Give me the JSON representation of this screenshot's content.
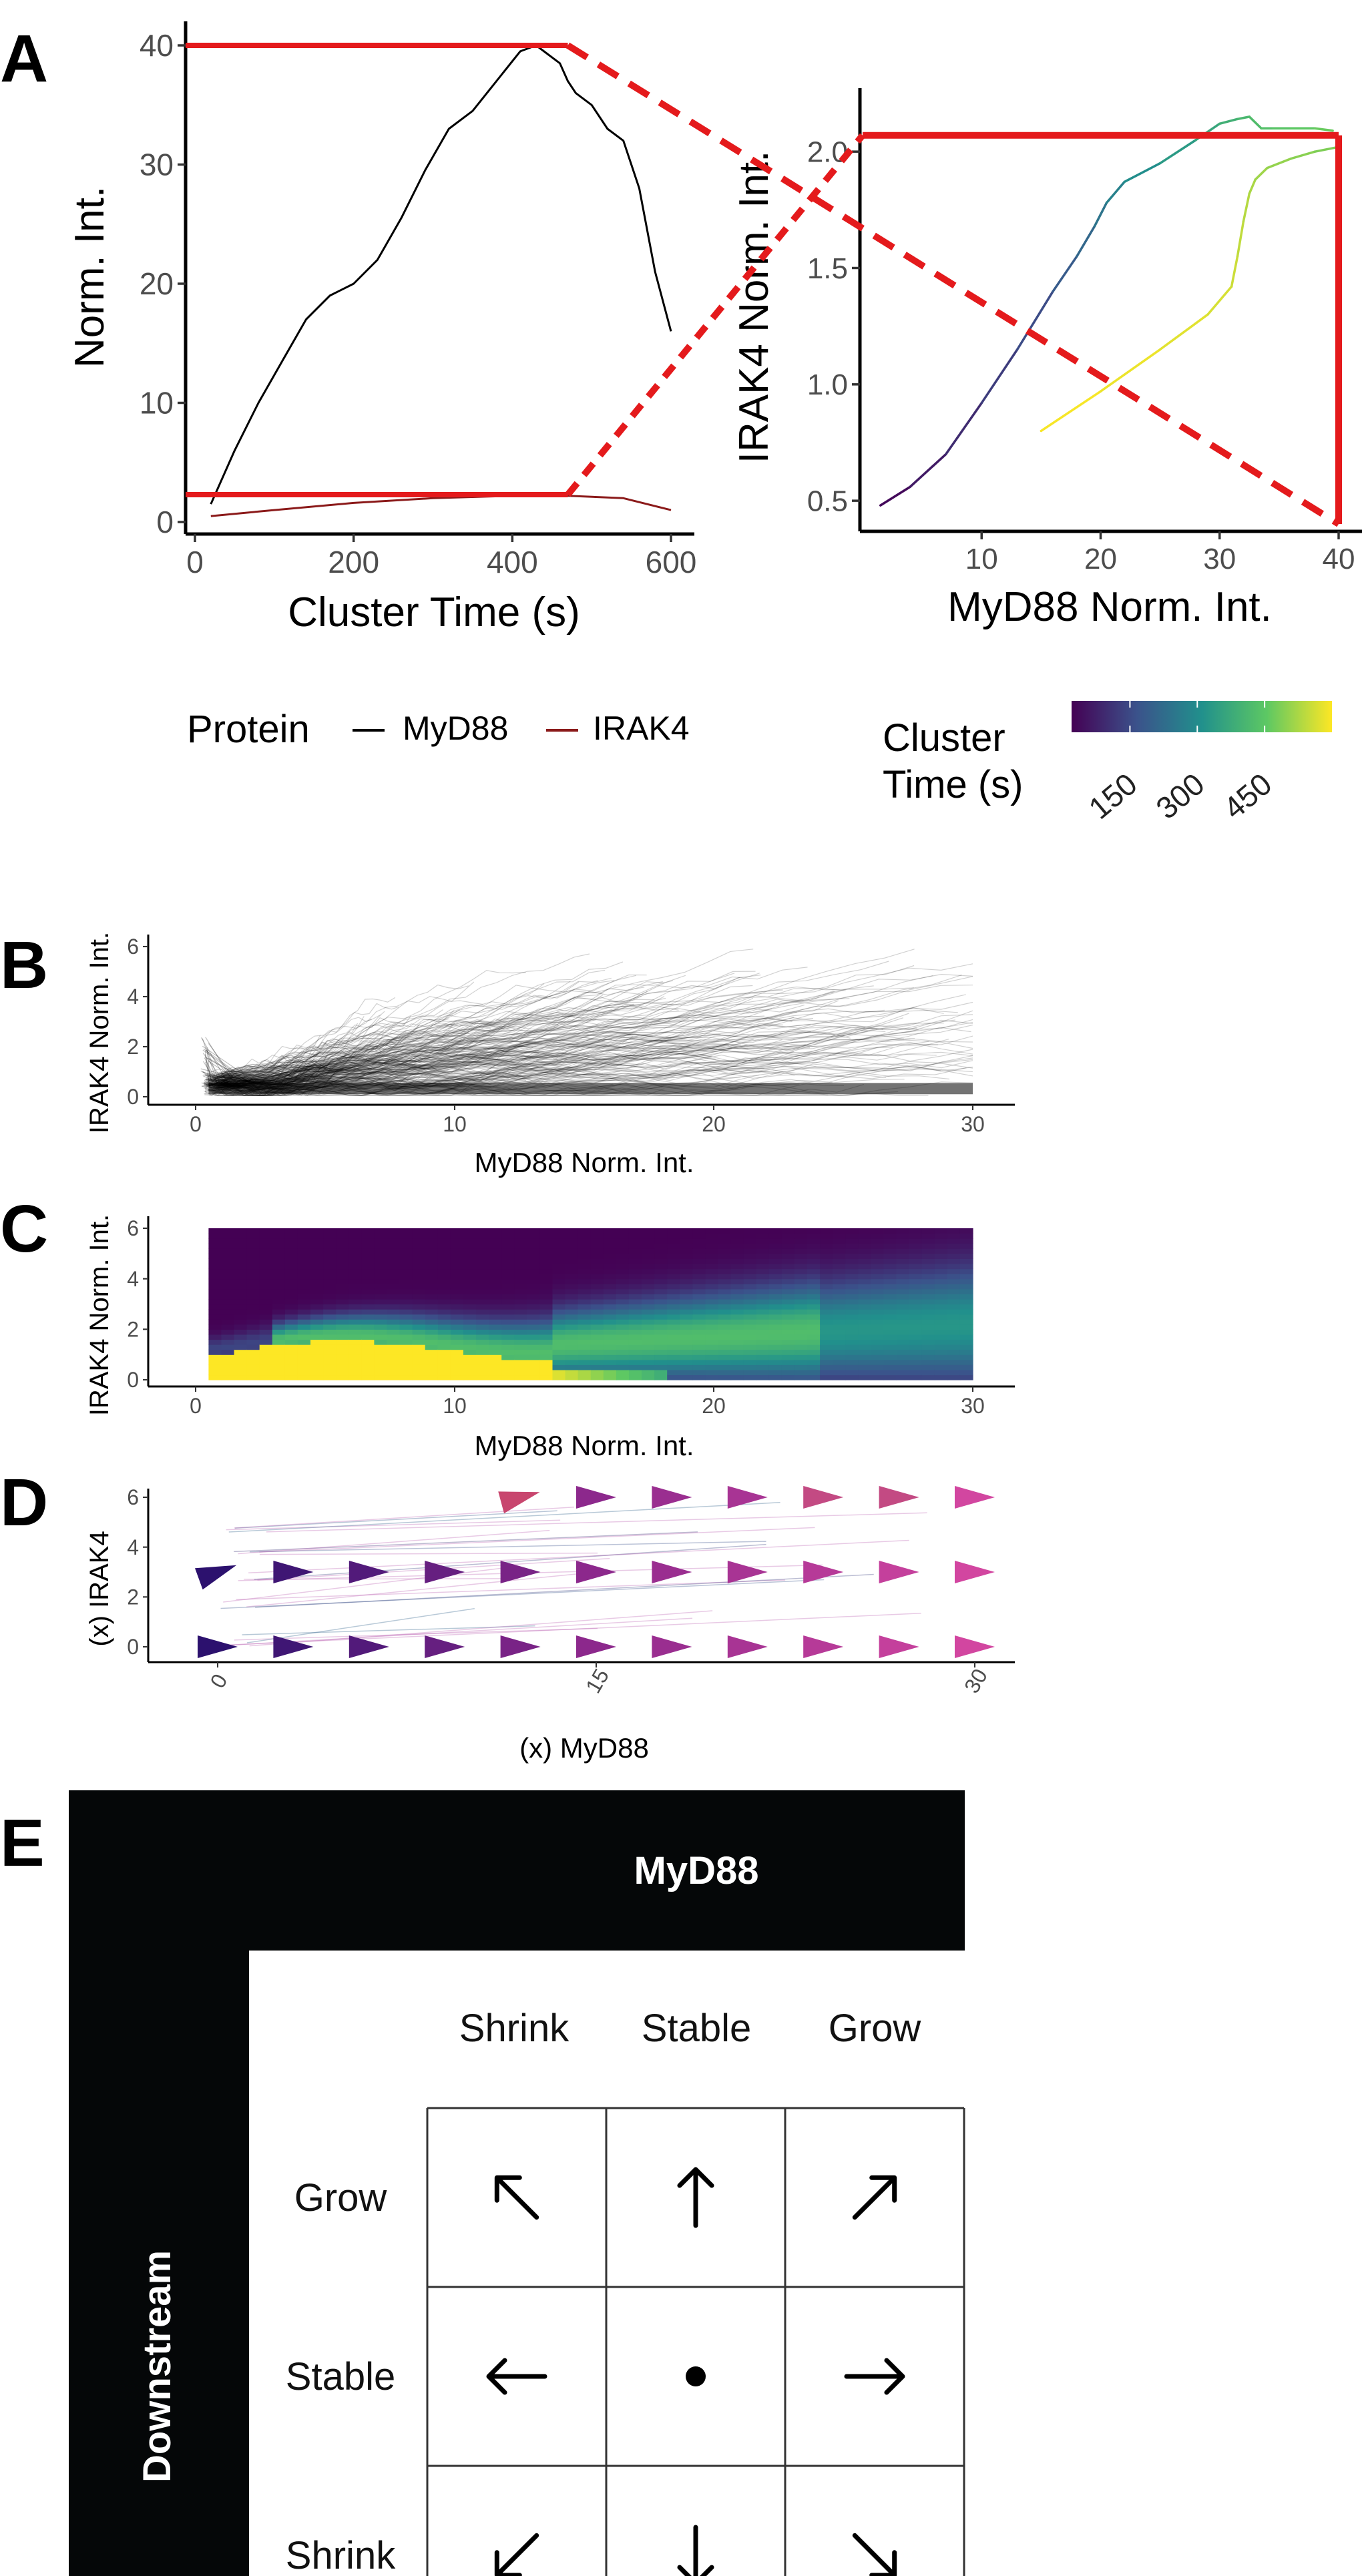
{
  "panel_labels": [
    "A",
    "B",
    "C",
    "D",
    "E"
  ],
  "colors": {
    "myd88_line": "#000000",
    "irak4_line": "#8b1a1a",
    "highlight_red": "#e41a1c",
    "viridis": [
      "#440154",
      "#3b528b",
      "#21908c",
      "#5dc863",
      "#fde725"
    ],
    "ink": "#050708"
  },
  "chart_data": [
    {
      "panel": "A",
      "type": "line",
      "xlabel": "Cluster Time (s)",
      "ylabel": "Norm. Int.",
      "xlim": [
        0,
        600
      ],
      "ylim": [
        0,
        40
      ],
      "xticks": [
        "0",
        "200",
        "400",
        "600"
      ],
      "yticks": [
        "0",
        "10",
        "20",
        "30",
        "40"
      ],
      "legend": {
        "title": "Protein",
        "entries": [
          "MyD88",
          "IRAK4"
        ],
        "position": "bottom"
      },
      "series": [
        {
          "name": "MyD88",
          "x": [
            20,
            50,
            80,
            110,
            140,
            170,
            200,
            230,
            260,
            290,
            320,
            350,
            380,
            410,
            430,
            450,
            460,
            470,
            480,
            500,
            520,
            540,
            560,
            580,
            600
          ],
          "y": [
            1.5,
            6,
            10,
            13.5,
            17,
            19,
            20,
            22,
            25.5,
            29.5,
            33,
            34.5,
            37,
            39.5,
            40,
            39,
            38.5,
            37,
            36,
            35,
            33,
            32,
            28,
            21,
            16
          ]
        },
        {
          "name": "IRAK4",
          "x": [
            20,
            100,
            200,
            300,
            400,
            470,
            540,
            600
          ],
          "y": [
            0.5,
            1,
            1.6,
            2,
            2.2,
            2.2,
            2,
            1
          ]
        }
      ],
      "highlights": [
        {
          "x": [
            0,
            470
          ],
          "y": [
            40,
            40
          ]
        },
        {
          "x": [
            0,
            470
          ],
          "y": [
            2.3,
            2.3
          ]
        }
      ]
    },
    {
      "panel": "A-phase",
      "type": "line",
      "xlabel": "MyD88 Norm. Int.",
      "ylabel": "IRAK4 Norm. Int.",
      "xlim": [
        0,
        40
      ],
      "ylim": [
        0.4,
        2.25
      ],
      "xticks": [
        "10",
        "20",
        "30",
        "40"
      ],
      "yticks": [
        "0.5",
        "1.0",
        "1.5",
        "2.0"
      ],
      "colorbar": {
        "title": "Cluster Time (s)",
        "ticks": [
          "150",
          "300",
          "450"
        ],
        "range": [
          20,
          600
        ]
      },
      "series": [
        {
          "x": [
            1.5,
            4,
            7,
            10,
            13,
            16,
            18,
            19.5,
            20.5,
            22,
            25,
            28,
            30,
            31.5,
            32.5,
            33.5,
            34.5,
            36,
            38,
            39.5
          ],
          "y": [
            0.48,
            0.56,
            0.7,
            0.92,
            1.15,
            1.4,
            1.55,
            1.68,
            1.78,
            1.87,
            1.95,
            2.05,
            2.12,
            2.14,
            2.15,
            2.1,
            2.1,
            2.1,
            2.1,
            2.09
          ],
          "t": [
            20,
            50,
            80,
            110,
            140,
            170,
            200,
            230,
            260,
            290,
            320,
            350,
            380,
            400,
            420,
            430,
            440,
            450,
            460,
            470
          ]
        },
        {
          "x": [
            15,
            20,
            25,
            29,
            31,
            31.5,
            32,
            32.5,
            33,
            34,
            36,
            38,
            40
          ],
          "y": [
            0.8,
            0.97,
            1.15,
            1.3,
            1.42,
            1.55,
            1.7,
            1.82,
            1.88,
            1.93,
            1.97,
            2.0,
            2.02
          ],
          "t": [
            600,
            590,
            580,
            570,
            560,
            550,
            540,
            530,
            520,
            510,
            500,
            490,
            480
          ]
        }
      ],
      "highlights": [
        {
          "x": [
            40,
            40
          ],
          "y": [
            0.4,
            2.07
          ]
        },
        {
          "x": [
            0,
            40
          ],
          "y": [
            2.07,
            2.07
          ]
        }
      ]
    },
    {
      "panel": "B",
      "type": "line",
      "xlabel": "MyD88 Norm. Int.",
      "ylabel": "IRAK4 Norm. Int.",
      "xlim": [
        0,
        30
      ],
      "ylim": [
        0,
        6
      ],
      "xticks": [
        "0",
        "10",
        "20",
        "30"
      ],
      "yticks": [
        "0",
        "2",
        "4",
        "6"
      ]
    },
    {
      "panel": "C",
      "type": "heatmap",
      "xlabel": "MyD88 Norm. Int.",
      "ylabel": "IRAK4 Norm. Int.",
      "xlim": [
        0,
        30
      ],
      "ylim": [
        0,
        6
      ],
      "xticks": [
        "0",
        "10",
        "20",
        "30"
      ],
      "yticks": [
        "0",
        "2",
        "4",
        "6"
      ]
    },
    {
      "panel": "D",
      "type": "scatter",
      "xlabel": "(x) MyD88",
      "ylabel": "(x) IRAK4",
      "xlim": [
        0,
        30
      ],
      "ylim": [
        0,
        6
      ],
      "xticks": [
        "0",
        "15",
        "30"
      ],
      "yticks": [
        "0",
        "2",
        "4",
        "6"
      ],
      "rows": [
        0,
        3,
        6
      ],
      "columns": [
        0,
        3,
        6,
        9,
        12,
        15,
        18,
        21,
        24,
        27,
        30
      ]
    }
  ],
  "panel_e": {
    "header": "MyD88",
    "side": "Downstream",
    "columns": [
      "Shrink",
      "Stable",
      "Grow"
    ],
    "rows": [
      "Grow",
      "Stable",
      "Shrink"
    ],
    "symbols": [
      [
        "up-left-arrow-icon",
        "up-arrow-icon",
        "up-right-arrow-icon"
      ],
      [
        "left-arrow-icon",
        "dot-icon",
        "right-arrow-icon"
      ],
      [
        "down-left-arrow-icon",
        "down-arrow-icon",
        "down-right-arrow-icon"
      ]
    ]
  }
}
